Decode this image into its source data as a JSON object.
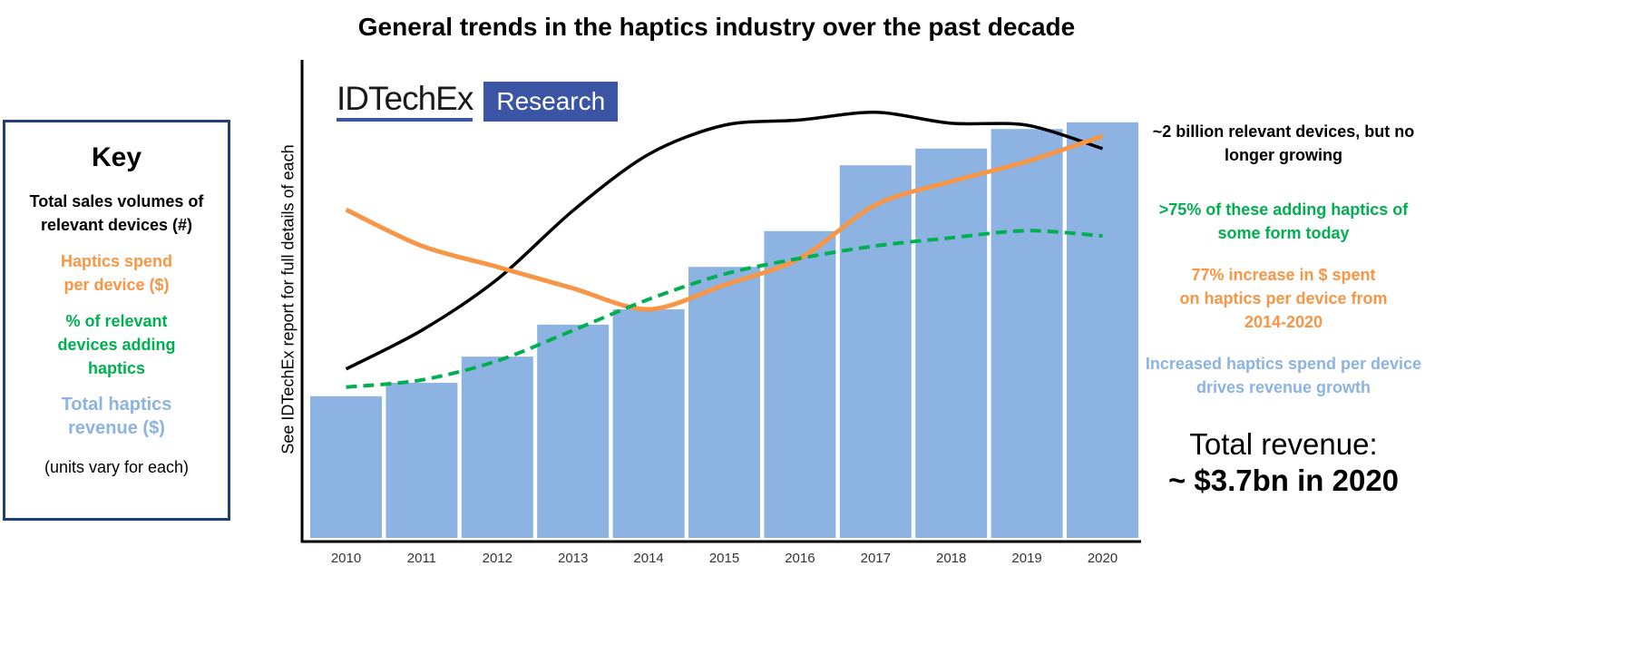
{
  "title": "General trends in the haptics industry over the past decade",
  "logo": {
    "brand": "IDTechEx",
    "tag": "Research"
  },
  "key": {
    "title": "Key",
    "items": [
      {
        "label": "Total sales volumes of relevant devices (#)",
        "color": "#000000"
      },
      {
        "label": "Haptics spend per device ($)",
        "color": "#f79646"
      },
      {
        "label": "% of relevant devices adding haptics",
        "color": "#00b050"
      },
      {
        "label": "Total haptics revenue ($)",
        "color": "#8db3e2"
      }
    ],
    "note": "(units vary for each)"
  },
  "annotations": [
    {
      "text": "~2 billion relevant devices, but no longer growing",
      "color": "#000000"
    },
    {
      "text": ">75% of these adding haptics of some form today",
      "color": "#00b050"
    },
    {
      "text": "77% increase in $ spent on haptics per device from 2014-2020",
      "color": "#f79646"
    },
    {
      "text": "Increased haptics spend per device drives revenue growth",
      "color": "#8db3e2"
    }
  ],
  "revenue": {
    "line1": "Total revenue:",
    "line2": "~ $3.7bn in 2020"
  },
  "chart_data": {
    "type": "bar",
    "title": "General trends in the haptics industry over the past decade",
    "ylabel": "See IDTechEx report for full details of each",
    "xlabel": "",
    "ylim": [
      0,
      100
    ],
    "grid": false,
    "categories": [
      "2010",
      "2011",
      "2012",
      "2013",
      "2014",
      "2015",
      "2016",
      "2017",
      "2018",
      "2019",
      "2020"
    ],
    "bars": {
      "name": "Total haptics revenue ($)",
      "color": "#8db3e2",
      "values": [
        29.7,
        32.5,
        38.0,
        44.7,
        47.9,
        56.8,
        64.3,
        78.1,
        81.6,
        85.7,
        87.1
      ]
    },
    "series": [
      {
        "name": "Total sales volumes of relevant devices (#)",
        "type": "line",
        "color": "#000000",
        "dashed": false,
        "values": [
          35.4,
          43.5,
          54.2,
          68.6,
          80.4,
          86.5,
          87.6,
          89.2,
          86.9,
          86.5,
          81.6
        ]
      },
      {
        "name": "Haptics spend per device ($)",
        "type": "line",
        "color": "#f79646",
        "dashed": false,
        "values": [
          68.8,
          61.2,
          56.8,
          52.3,
          47.9,
          53.0,
          58.6,
          69.8,
          74.7,
          78.9,
          84.2
        ]
      },
      {
        "name": "% of relevant devices adding haptics",
        "type": "line",
        "color": "#00b050",
        "dashed": true,
        "values": [
          31.6,
          33.1,
          37.1,
          43.5,
          50.0,
          55.3,
          58.6,
          61.2,
          62.9,
          64.4,
          63.3
        ]
      }
    ]
  }
}
